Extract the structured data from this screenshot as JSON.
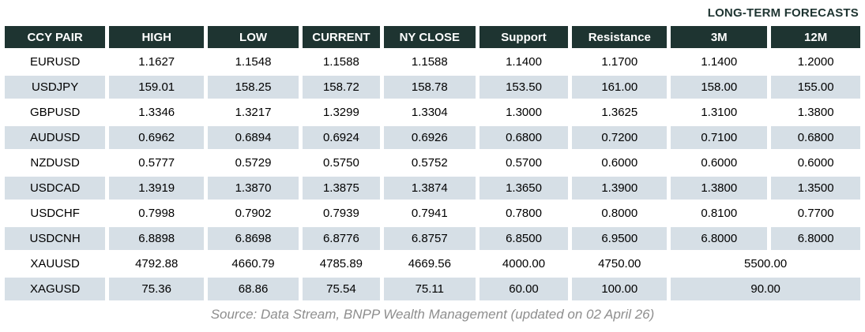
{
  "title": "LONG-TERM FORECASTS",
  "colors": {
    "header_bg": "#1e3431",
    "header_text": "#ffffff",
    "row_alt_bg": "#d6dfe6",
    "title_text": "#1e3431",
    "source_text": "#8e8e8e"
  },
  "table": {
    "columns": [
      "CCY PAIR",
      "HIGH",
      "LOW",
      "CURRENT",
      "NY CLOSE",
      "Support",
      "Resistance",
      "3M",
      "12M"
    ],
    "rows": [
      {
        "pair": "EURUSD",
        "values": [
          "1.1627",
          "1.1548",
          "1.1588",
          "1.1588",
          "1.1400",
          "1.1700"
        ],
        "forecast": [
          "1.1400",
          "1.2000"
        ]
      },
      {
        "pair": "USDJPY",
        "values": [
          "159.01",
          "158.25",
          "158.72",
          "158.78",
          "153.50",
          "161.00"
        ],
        "forecast": [
          "158.00",
          "155.00"
        ]
      },
      {
        "pair": "GBPUSD",
        "values": [
          "1.3346",
          "1.3217",
          "1.3299",
          "1.3304",
          "1.3000",
          "1.3625"
        ],
        "forecast": [
          "1.3100",
          "1.3800"
        ]
      },
      {
        "pair": "AUDUSD",
        "values": [
          "0.6962",
          "0.6894",
          "0.6924",
          "0.6926",
          "0.6800",
          "0.7200"
        ],
        "forecast": [
          "0.7100",
          "0.6800"
        ]
      },
      {
        "pair": "NZDUSD",
        "values": [
          "0.5777",
          "0.5729",
          "0.5750",
          "0.5752",
          "0.5700",
          "0.6000"
        ],
        "forecast": [
          "0.6000",
          "0.6000"
        ]
      },
      {
        "pair": "USDCAD",
        "values": [
          "1.3919",
          "1.3870",
          "1.3875",
          "1.3874",
          "1.3650",
          "1.3900"
        ],
        "forecast": [
          "1.3800",
          "1.3500"
        ]
      },
      {
        "pair": "USDCHF",
        "values": [
          "0.7998",
          "0.7902",
          "0.7939",
          "0.7941",
          "0.7800",
          "0.8000"
        ],
        "forecast": [
          "0.8100",
          "0.7700"
        ]
      },
      {
        "pair": "USDCNH",
        "values": [
          "6.8898",
          "6.8698",
          "6.8776",
          "6.8757",
          "6.8500",
          "6.9500"
        ],
        "forecast": [
          "6.8000",
          "6.8000"
        ]
      },
      {
        "pair": "XAUUSD",
        "values": [
          "4792.88",
          "4660.79",
          "4785.89",
          "4669.56",
          "4000.00",
          "4750.00"
        ],
        "forecast_merged": "5500.00"
      },
      {
        "pair": "XAGUSD",
        "values": [
          "75.36",
          "68.86",
          "75.54",
          "75.11",
          "60.00",
          "100.00"
        ],
        "forecast_merged": "90.00"
      }
    ]
  },
  "source": "Source: Data Stream, BNPP Wealth Management (updated on 02 April 26)"
}
